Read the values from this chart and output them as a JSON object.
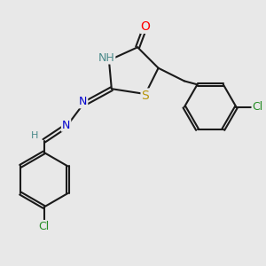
{
  "bg_color": "#e8e8e8",
  "atom_colors": {
    "C": "#1a1a1a",
    "N": "#0000cd",
    "O": "#ff0000",
    "S": "#b8960c",
    "Cl": "#228B22",
    "H": "#4a8a8a"
  },
  "bond_color": "#1a1a1a",
  "bond_width": 1.5,
  "font_size": 9
}
